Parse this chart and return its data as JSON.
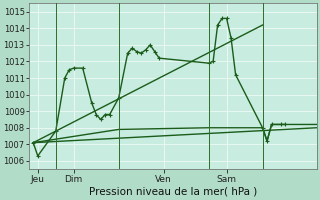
{
  "title": "Pression niveau de la mer( hPa )",
  "background_color": "#b0dcc8",
  "plot_bg_color": "#c8ece0",
  "grid_color": "#e8f8f0",
  "line_color": "#1a5c1a",
  "ylim": [
    1005.5,
    1015.5
  ],
  "yticks": [
    1006,
    1007,
    1008,
    1009,
    1010,
    1011,
    1012,
    1013,
    1014,
    1015
  ],
  "day_labels": [
    "Jeu",
    "Dim",
    "Ven",
    "Sam"
  ],
  "day_positions": [
    0.5,
    4.5,
    14.5,
    21.5
  ],
  "vline_positions": [
    2.5,
    9.5,
    19.5,
    25.5
  ],
  "xlim": [
    -0.5,
    31.5
  ],
  "series1_x": [
    0,
    0.5,
    2.5,
    3.5,
    4.0,
    4.5,
    5.5,
    6.5,
    7.0,
    7.5,
    8.0,
    8.5,
    9.5,
    10.5,
    11.0,
    11.5,
    12.0,
    12.5,
    13.0,
    13.5,
    14.0,
    19.5,
    20.0,
    20.5,
    21.0,
    21.5,
    22.0,
    22.5,
    25.5,
    26.0,
    26.5,
    27.5,
    28.0
  ],
  "series1_y": [
    1007.1,
    1006.3,
    1007.8,
    1011.0,
    1011.5,
    1011.6,
    1011.6,
    1009.5,
    1008.8,
    1008.5,
    1008.8,
    1008.8,
    1009.8,
    1012.5,
    1012.8,
    1012.6,
    1012.5,
    1012.7,
    1013.0,
    1012.6,
    1012.2,
    1011.9,
    1012.0,
    1014.2,
    1014.6,
    1014.6,
    1013.4,
    1011.2,
    1008.0,
    1007.2,
    1008.2,
    1008.2,
    1008.2
  ],
  "series2_x": [
    0,
    31.5
  ],
  "series2_y": [
    1007.1,
    1008.0
  ],
  "series3_x": [
    0,
    9.5,
    19.5,
    25.5,
    26.0,
    26.5,
    27.5,
    28.0,
    31.5
  ],
  "series3_y": [
    1007.1,
    1007.9,
    1008.0,
    1008.0,
    1007.2,
    1008.2,
    1008.2,
    1008.2,
    1008.2
  ],
  "series4_x": [
    0,
    25.5
  ],
  "series4_y": [
    1007.1,
    1014.2
  ]
}
